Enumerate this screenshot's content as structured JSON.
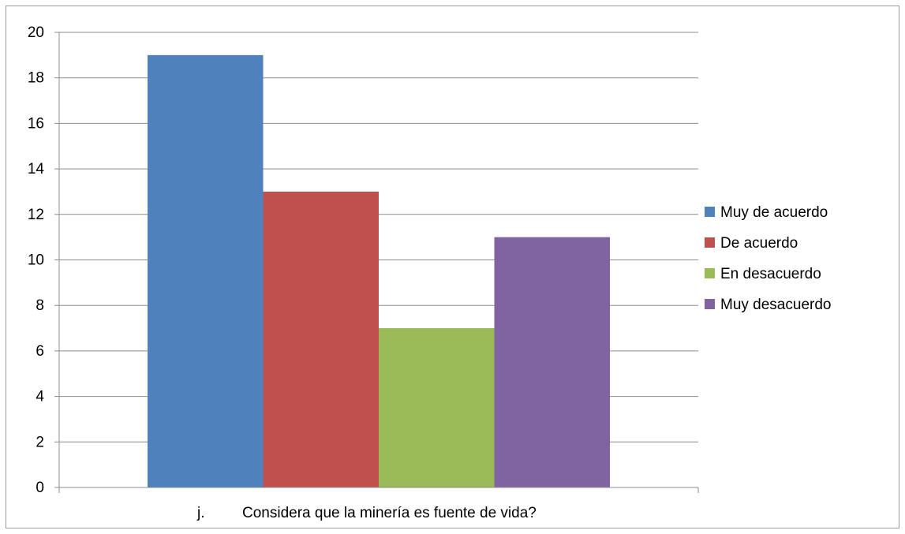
{
  "chart_data": {
    "type": "bar",
    "categories": [
      "j.         Considera que la minería es fuente de vida?"
    ],
    "series": [
      {
        "name": "Muy de acuerdo",
        "values": [
          19
        ],
        "color": "#4F81BD"
      },
      {
        "name": "De acuerdo",
        "values": [
          13
        ],
        "color": "#C0504D"
      },
      {
        "name": "En desacuerdo",
        "values": [
          7
        ],
        "color": "#9BBB59"
      },
      {
        "name": "Muy desacuerdo",
        "values": [
          11
        ],
        "color": "#8064A2"
      }
    ],
    "title": "",
    "xlabel": "",
    "ylabel": "",
    "ylim": [
      0,
      20
    ],
    "yticks": [
      "0",
      "2",
      "4",
      "6",
      "8",
      "10",
      "12",
      "14",
      "16",
      "18",
      "20"
    ],
    "grid": true,
    "legend_position": "right"
  }
}
